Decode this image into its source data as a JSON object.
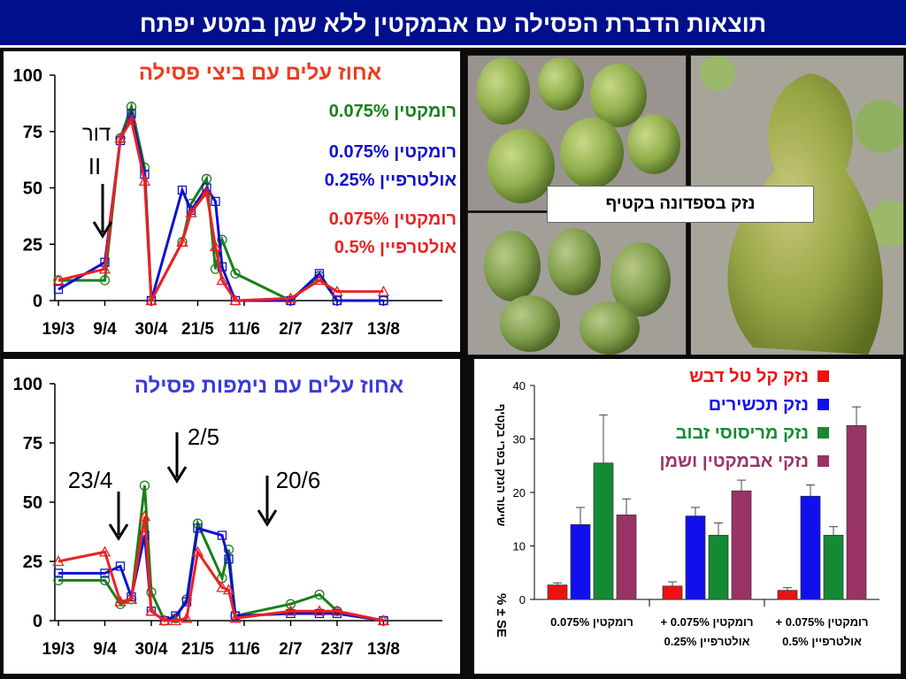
{
  "page_title": "תוצאות הדברת הפסילה עם אבמקטין ללא שמן במטע יפתח",
  "photo_caption": "נזק בספדונה בקטיף",
  "colors": {
    "green": "#1a7f1a",
    "blue": "#1010d0",
    "red": "#ee2020",
    "purple": "#a03a70",
    "title_bg": "#000f8c"
  },
  "chart_data": [
    {
      "type": "line",
      "title": "אחוז עלים עם ביצי פסילה",
      "x_tick_labels": [
        "19/3",
        "9/4",
        "30/4",
        "21/5",
        "11/6",
        "2/7",
        "23/7",
        "13/8"
      ],
      "y_ticks": [
        0,
        25,
        50,
        75,
        100
      ],
      "ylim": [
        0,
        100
      ],
      "annotations": [
        {
          "line1": "דור",
          "line2": "II",
          "x": "9/4"
        }
      ],
      "series": [
        {
          "name": "רומקטין 0.075%",
          "color": "#1a7f1a",
          "marker": "circle",
          "x": [
            "19/3",
            "9/4",
            "16/4",
            "21/4",
            "27/4",
            "30/4",
            "14/5",
            "18/5",
            "25/5",
            "29/5",
            "1/6",
            "7/6",
            "2/7",
            "15/7",
            "23/7",
            "13/8"
          ],
          "values": [
            9,
            9,
            72,
            86,
            59,
            0,
            26,
            43,
            54,
            14,
            27,
            12,
            0,
            11,
            0,
            0
          ]
        },
        {
          "name": "רומקטין 0.075% אולטרפיין 0.25%",
          "color": "#1010d0",
          "marker": "square",
          "x": [
            "19/3",
            "9/4",
            "16/4",
            "21/4",
            "27/4",
            "30/4",
            "14/5",
            "18/5",
            "25/5",
            "29/5",
            "1/6",
            "7/6",
            "2/7",
            "15/7",
            "23/7",
            "13/8"
          ],
          "values": [
            5,
            17,
            71,
            83,
            56,
            0,
            49,
            40,
            50,
            44,
            15,
            0,
            0,
            12,
            0,
            0
          ]
        },
        {
          "name": "רומקטין 0.075% אולטרפיין 0.5%",
          "color": "#ee2020",
          "marker": "triangle",
          "x": [
            "19/3",
            "9/4",
            "16/4",
            "21/4",
            "27/4",
            "30/4",
            "14/5",
            "18/5",
            "25/5",
            "29/5",
            "1/6",
            "7/6",
            "2/7",
            "15/7",
            "23/7",
            "13/8"
          ],
          "values": [
            9,
            14,
            72,
            80,
            53,
            0,
            26,
            39,
            48,
            24,
            9,
            0,
            1,
            9,
            4,
            4
          ]
        }
      ]
    },
    {
      "type": "line",
      "title": "אחוז עלים עם נימפות פסילה",
      "x_tick_labels": [
        "19/3",
        "9/4",
        "30/4",
        "21/5",
        "11/6",
        "2/7",
        "23/7",
        "13/8"
      ],
      "y_ticks": [
        0,
        25,
        50,
        75,
        100
      ],
      "ylim": [
        0,
        100
      ],
      "annotations": [
        {
          "label": "23/4",
          "x": "23/4"
        },
        {
          "label": "2/5",
          "x": "2/5"
        },
        {
          "label": "20/6",
          "x": "20/6"
        }
      ],
      "series": [
        {
          "name": "רומקטין 0.075%",
          "color": "#1a7f1a",
          "marker": "circle",
          "x": [
            "19/3",
            "9/4",
            "16/4",
            "21/4",
            "27/4",
            "30/4",
            "6/5",
            "11/5",
            "16/5",
            "21/5",
            "1/6",
            "4/6",
            "7/6",
            "2/7",
            "15/7",
            "23/7",
            "13/8"
          ],
          "values": [
            17,
            17,
            7,
            9,
            57,
            12,
            0,
            1,
            9,
            41,
            18,
            30,
            2,
            7,
            11,
            4,
            0
          ]
        },
        {
          "name": "רומקטין 0.075% אולטרפיין 0.25%",
          "color": "#1010d0",
          "marker": "square",
          "x": [
            "19/3",
            "9/4",
            "16/4",
            "21/4",
            "27/4",
            "30/4",
            "6/5",
            "11/5",
            "16/5",
            "21/5",
            "1/6",
            "4/6",
            "7/6",
            "2/7",
            "15/7",
            "23/7",
            "13/8"
          ],
          "values": [
            20,
            20,
            23,
            10,
            36,
            4,
            0,
            2,
            8,
            39,
            36,
            26,
            2,
            3,
            3,
            3,
            0
          ]
        },
        {
          "name": "רומקטין 0.075% אולטרפיין 0.5%",
          "color": "#ee2020",
          "marker": "triangle",
          "x": [
            "19/3",
            "9/4",
            "16/4",
            "21/4",
            "27/4",
            "30/4",
            "6/5",
            "11/5",
            "16/5",
            "21/5",
            "1/6",
            "4/6",
            "7/6",
            "2/7",
            "15/7",
            "23/7",
            "13/8"
          ],
          "values": [
            25,
            29,
            8,
            9,
            44,
            4,
            0,
            0,
            1,
            29,
            14,
            13,
            1,
            4,
            4,
            4,
            0
          ]
        }
      ]
    },
    {
      "type": "bar",
      "ylabel": "שיעור הנזק בפרי בקטיף",
      "ylabel2": "% ± SE",
      "ylim": [
        0,
        40
      ],
      "y_ticks": [
        0,
        10,
        20,
        30,
        40
      ],
      "categories": [
        {
          "line1": "רומקטין 0.075%",
          "line2": ""
        },
        {
          "line1": "רומקטין 0.075% +",
          "line2": "אולטרפיין 0.25%"
        },
        {
          "line1": "רומקטין 0.075% +",
          "line2": "אולטרפיין 0.5%"
        }
      ],
      "series": [
        {
          "name": "נזק קל טל דבש",
          "color": "#ee1111",
          "values": [
            2.7,
            2.5,
            1.7
          ],
          "errors": [
            0.4,
            0.8,
            0.5
          ]
        },
        {
          "name": "נזק תכשירים",
          "color": "#1010ee",
          "values": [
            14.0,
            15.6,
            19.3
          ],
          "errors": [
            3.2,
            1.6,
            2.1
          ]
        },
        {
          "name": "נזק מריסוסי זבוב",
          "color": "#158a35",
          "values": [
            25.5,
            12.0,
            12.0
          ],
          "errors": [
            9.0,
            2.3,
            1.6
          ]
        },
        {
          "name": "נזקי אבמקטין ושמן",
          "color": "#993366",
          "values": [
            15.8,
            20.3,
            32.5
          ],
          "errors": [
            3.0,
            2.0,
            3.5
          ]
        }
      ]
    }
  ]
}
